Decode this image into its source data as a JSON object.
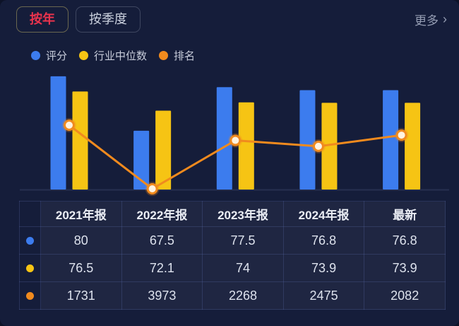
{
  "colors": {
    "background": "#151d3a",
    "cell_bg": "#1d2648",
    "accent_red": "#e9334d",
    "blue": "#3c7cee",
    "yellow": "#f6c414",
    "orange": "#f08a1e"
  },
  "tabs": [
    {
      "label": "按年",
      "active": true
    },
    {
      "label": "按季度",
      "active": false
    }
  ],
  "more": {
    "label": "更多",
    "chevron": "›"
  },
  "chart_data": {
    "type": "bar+line",
    "categories": [
      "2021年报",
      "2022年报",
      "2023年报",
      "2024年报",
      "最新"
    ],
    "series": [
      {
        "name": "评分",
        "type": "bar",
        "color": "#3c7cee",
        "values": [
          80,
          67.5,
          77.5,
          76.8,
          76.8
        ]
      },
      {
        "name": "行业中位数",
        "type": "bar",
        "color": "#f6c414",
        "values": [
          76.5,
          72.1,
          74,
          73.9,
          73.9
        ]
      },
      {
        "name": "排名",
        "type": "line",
        "color": "#f08a1e",
        "values": [
          1731,
          3973,
          2268,
          2475,
          2082
        ],
        "axis_inverted": true
      }
    ],
    "legend_position": "top-left",
    "grid": false,
    "value_axis_shown": false
  },
  "table": {
    "columns": [
      "2021年报",
      "2022年报",
      "2023年报",
      "2024年报",
      "最新"
    ],
    "rows": [
      {
        "series": "评分",
        "dot_color": "#3c7cee",
        "values": [
          "80",
          "67.5",
          "77.5",
          "76.8",
          "76.8"
        ]
      },
      {
        "series": "行业中位数",
        "dot_color": "#f6c414",
        "values": [
          "76.5",
          "72.1",
          "74",
          "73.9",
          "73.9"
        ]
      },
      {
        "series": "排名",
        "dot_color": "#f08a1e",
        "values": [
          "1731",
          "3973",
          "2268",
          "2475",
          "2082"
        ]
      }
    ]
  }
}
